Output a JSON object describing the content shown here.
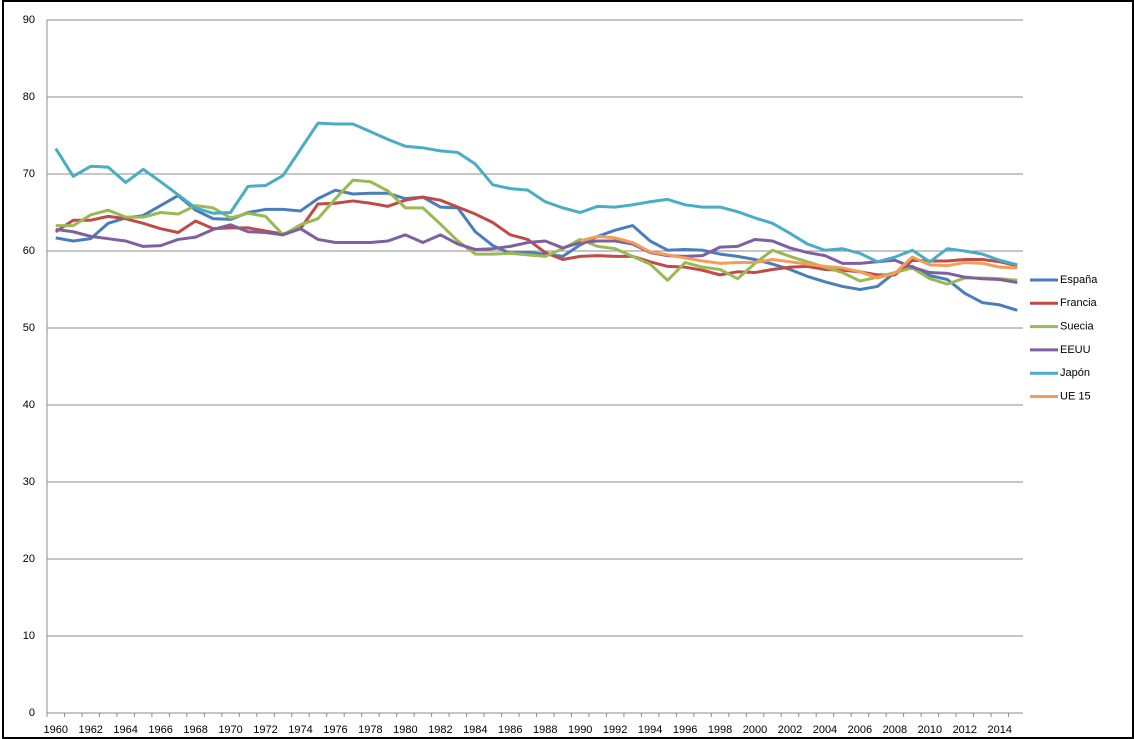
{
  "chart_data": {
    "type": "line",
    "categories": [
      "1960",
      null,
      "1962",
      null,
      "1964",
      null,
      "1966",
      null,
      "1968",
      null,
      "1970",
      null,
      "1972",
      null,
      "1974",
      null,
      "1976",
      null,
      "1978",
      null,
      "1980",
      null,
      "1982",
      null,
      "1984",
      null,
      "1986",
      null,
      "1988",
      null,
      "1990",
      null,
      "1992",
      null,
      "1994",
      null,
      "1996",
      null,
      "1998",
      null,
      "2000",
      null,
      "2002",
      null,
      "2004",
      null,
      "2006",
      null,
      "2008",
      null,
      "2010",
      null,
      "2012",
      null,
      "2014",
      null
    ],
    "series": [
      {
        "name": "España",
        "color": "#4a7ebb",
        "values": [
          61.7,
          61.3,
          61.6,
          63.6,
          64.3,
          64.6,
          65.9,
          67.2,
          65.3,
          64.2,
          64.1,
          65.0,
          65.4,
          65.4,
          65.2,
          66.8,
          67.9,
          67.4,
          67.5,
          67.5,
          66.8,
          67.0,
          65.7,
          65.6,
          62.5,
          60.7,
          59.7,
          59.8,
          59.6,
          59.3,
          60.8,
          61.9,
          62.7,
          63.3,
          61.3,
          60.1,
          60.2,
          60.1,
          59.6,
          59.3,
          58.9,
          58.3,
          57.6,
          56.7,
          56.0,
          55.4,
          55.0,
          55.4,
          57.2,
          58.0,
          56.8,
          56.3,
          54.5,
          53.3,
          53.0,
          52.3
        ]
      },
      {
        "name": "Francia",
        "color": "#be4b48",
        "values": [
          62.5,
          64.0,
          64.0,
          64.5,
          64.2,
          63.6,
          62.9,
          62.4,
          63.9,
          62.9,
          63.0,
          63.0,
          62.6,
          62.2,
          62.9,
          66.1,
          66.2,
          66.5,
          66.2,
          65.8,
          66.6,
          67.0,
          66.6,
          65.7,
          64.8,
          63.7,
          62.1,
          61.5,
          59.8,
          58.9,
          59.3,
          59.4,
          59.3,
          59.3,
          58.6,
          58.0,
          57.9,
          57.5,
          56.9,
          57.3,
          57.2,
          57.6,
          57.9,
          58.0,
          57.6,
          57.5,
          57.3,
          56.9,
          56.9,
          58.8,
          58.7,
          58.7,
          58.9,
          58.9,
          58.6,
          58.1
        ]
      },
      {
        "name": "Suecia",
        "color": "#98b954",
        "values": [
          63.3,
          63.3,
          64.7,
          65.3,
          64.4,
          64.4,
          65.0,
          64.8,
          65.9,
          65.6,
          64.3,
          64.9,
          64.5,
          62.1,
          63.4,
          64.2,
          66.8,
          69.2,
          69.0,
          67.8,
          65.6,
          65.6,
          63.5,
          61.3,
          59.6,
          59.6,
          59.7,
          59.5,
          59.3,
          60.3,
          61.5,
          60.6,
          60.3,
          59.3,
          58.3,
          56.2,
          58.5,
          57.9,
          57.6,
          56.4,
          58.4,
          60.1,
          59.3,
          58.6,
          57.9,
          57.2,
          56.1,
          56.6,
          57.2,
          57.8,
          56.4,
          55.7,
          56.5,
          56.5,
          56.4,
          56.2
        ]
      },
      {
        "name": "EEUU",
        "color": "#7d60a0",
        "values": [
          62.8,
          62.5,
          61.9,
          61.6,
          61.3,
          60.6,
          60.7,
          61.5,
          61.8,
          62.8,
          63.4,
          62.5,
          62.4,
          62.1,
          62.9,
          61.5,
          61.1,
          61.1,
          61.1,
          61.3,
          62.1,
          61.1,
          62.1,
          60.9,
          60.2,
          60.3,
          60.6,
          61.1,
          61.3,
          60.4,
          61.1,
          61.3,
          61.3,
          60.9,
          59.8,
          59.4,
          59.3,
          59.4,
          60.5,
          60.6,
          61.5,
          61.3,
          60.4,
          59.8,
          59.4,
          58.4,
          58.4,
          58.6,
          58.8,
          57.9,
          57.2,
          57.1,
          56.6,
          56.4,
          56.3,
          55.9
        ]
      },
      {
        "name": "Japón",
        "color": "#4bacc6",
        "values": [
          73.3,
          69.7,
          71.0,
          70.9,
          68.9,
          70.6,
          69.0,
          67.3,
          65.6,
          64.9,
          65.0,
          68.4,
          68.5,
          69.8,
          73.2,
          76.6,
          76.5,
          76.5,
          75.5,
          74.5,
          73.6,
          73.4,
          73.0,
          72.8,
          71.3,
          68.6,
          68.1,
          67.9,
          66.4,
          65.6,
          65.0,
          65.8,
          65.7,
          66.0,
          66.4,
          66.7,
          66.0,
          65.7,
          65.7,
          65.1,
          64.3,
          63.6,
          62.3,
          60.9,
          60.1,
          60.3,
          59.7,
          58.6,
          59.2,
          60.1,
          58.6,
          60.3,
          60.0,
          59.6,
          58.8,
          58.2
        ]
      },
      {
        "name": "UE 15",
        "color": "#f59d56",
        "values": [
          null,
          null,
          null,
          null,
          null,
          null,
          null,
          null,
          null,
          null,
          null,
          null,
          null,
          null,
          null,
          null,
          null,
          null,
          null,
          null,
          null,
          null,
          null,
          null,
          null,
          null,
          null,
          null,
          null,
          null,
          61.3,
          61.9,
          61.7,
          61.1,
          59.9,
          59.5,
          59.1,
          58.7,
          58.4,
          58.5,
          58.5,
          58.9,
          58.6,
          58.3,
          58.0,
          57.8,
          57.3,
          56.5,
          57.1,
          59.2,
          58.2,
          58.1,
          58.5,
          58.4,
          57.9,
          57.8
        ]
      }
    ],
    "ylim": [
      0,
      90
    ],
    "yticks": [
      0,
      10,
      20,
      30,
      40,
      50,
      60,
      70,
      80,
      90
    ],
    "grid": true,
    "legend": "right"
  }
}
